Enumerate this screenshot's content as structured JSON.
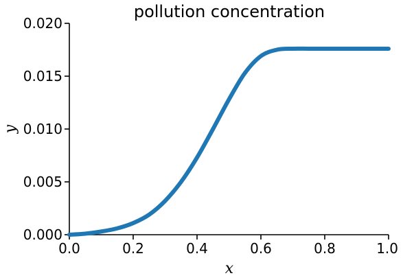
{
  "chart_data": {
    "type": "line",
    "title": "pollution concentration",
    "xlabel": "x",
    "ylabel": "y",
    "xlim": [
      0.0,
      1.0
    ],
    "ylim": [
      0.0,
      0.02
    ],
    "xticks": [
      "0.0",
      "0.2",
      "0.4",
      "0.6",
      "0.8",
      "1.0"
    ],
    "yticks": [
      "0.000",
      "0.005",
      "0.010",
      "0.015",
      "0.020"
    ],
    "grid": false,
    "series": [
      {
        "color": "#1f77b4",
        "x": [
          0.0,
          0.05,
          0.1,
          0.15,
          0.2,
          0.25,
          0.3,
          0.35,
          0.4,
          0.45,
          0.5,
          0.55,
          0.6,
          0.65,
          0.7,
          0.75,
          0.8,
          0.85,
          0.9,
          0.95,
          1.0
        ],
        "y": [
          0.0,
          0.0001,
          0.0003,
          0.0006,
          0.0011,
          0.0019,
          0.0032,
          0.005,
          0.0073,
          0.01,
          0.0128,
          0.0153,
          0.0169,
          0.0175,
          0.0176,
          0.0176,
          0.0176,
          0.0176,
          0.0176,
          0.0176,
          0.0176
        ]
      }
    ]
  }
}
